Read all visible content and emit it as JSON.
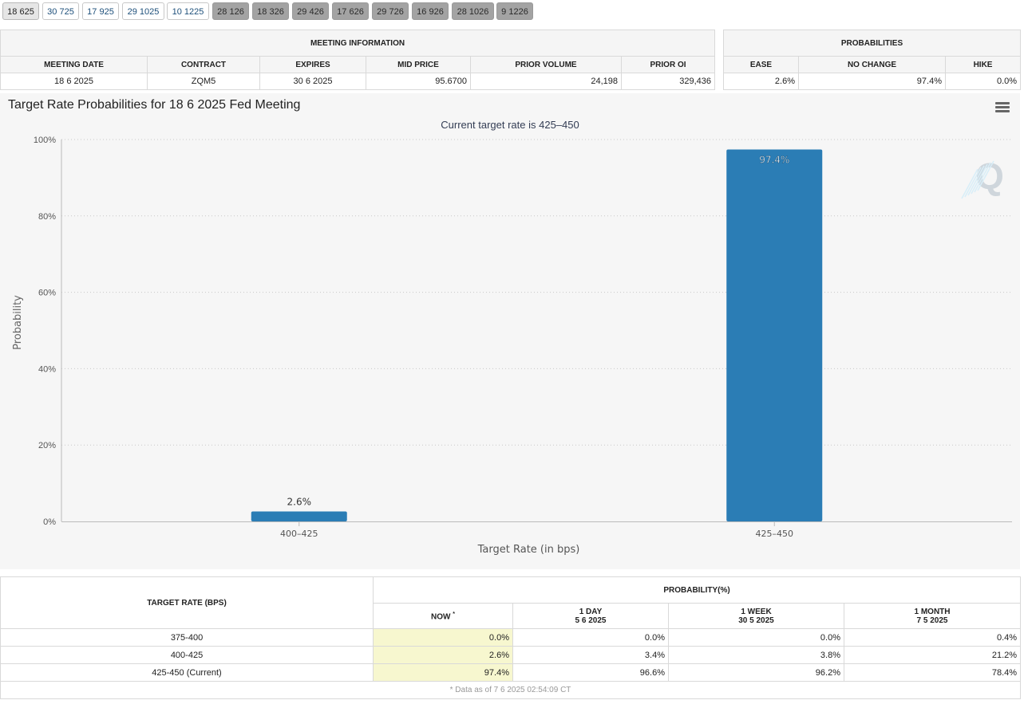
{
  "tabs": [
    {
      "label": "18 625",
      "state": "active"
    },
    {
      "label": "30 725",
      "state": "normal"
    },
    {
      "label": "17 925",
      "state": "normal"
    },
    {
      "label": "29 1025",
      "state": "normal"
    },
    {
      "label": "10 1225",
      "state": "normal"
    },
    {
      "label": "28 126",
      "state": "gray"
    },
    {
      "label": "18 326",
      "state": "gray"
    },
    {
      "label": "29 426",
      "state": "gray"
    },
    {
      "label": "17 626",
      "state": "gray"
    },
    {
      "label": "29 726",
      "state": "gray"
    },
    {
      "label": "16 926",
      "state": "gray"
    },
    {
      "label": "28 1026",
      "state": "gray"
    },
    {
      "label": "9 1226",
      "state": "gray"
    }
  ],
  "meeting_info": {
    "title": "MEETING INFORMATION",
    "headers": [
      "MEETING DATE",
      "CONTRACT",
      "EXPIRES",
      "MID PRICE",
      "PRIOR VOLUME",
      "PRIOR OI"
    ],
    "values": [
      "18 6 2025",
      "ZQM5",
      "30 6 2025",
      "95.6700",
      "24,198",
      "329,436"
    ]
  },
  "probabilities": {
    "title": "PROBABILITIES",
    "headers": [
      "EASE",
      "NO CHANGE",
      "HIKE"
    ],
    "values": [
      "2.6%",
      "97.4%",
      "0.0%"
    ]
  },
  "chart_data": {
    "type": "bar",
    "title": "Target Rate Probabilities for 18 6 2025 Fed Meeting",
    "subtitle": "Current target rate is 425–450",
    "xlabel": "Target Rate (in bps)",
    "ylabel": "Probability",
    "categories": [
      "400–425",
      "425–450"
    ],
    "values": [
      2.6,
      97.4
    ],
    "value_labels": [
      "2.6%",
      "97.4%"
    ],
    "ylim": [
      0,
      100
    ],
    "yticks": [
      0,
      20,
      40,
      60,
      80,
      100
    ],
    "ytick_labels": [
      "0%",
      "20%",
      "40%",
      "60%",
      "80%",
      "100%"
    ],
    "grid": true,
    "bar_color": "#2b7db5",
    "watermark": "Q"
  },
  "rate_table": {
    "target_rate_header": "TARGET RATE (BPS)",
    "probability_header": "PROBABILITY(%)",
    "sub_headers": [
      {
        "line1": "NOW",
        "line2": ""
      },
      {
        "line1": "1 DAY",
        "line2": "5 6 2025"
      },
      {
        "line1": "1 WEEK",
        "line2": "30 5 2025"
      },
      {
        "line1": "1 MONTH",
        "line2": "7 5 2025"
      }
    ],
    "now_marker": "*",
    "rows": [
      {
        "rate": "375-400",
        "now": "0.0%",
        "day": "0.0%",
        "week": "0.0%",
        "month": "0.4%"
      },
      {
        "rate": "400-425",
        "now": "2.6%",
        "day": "3.4%",
        "week": "3.8%",
        "month": "21.2%"
      },
      {
        "rate": "425-450 (Current)",
        "now": "97.4%",
        "day": "96.6%",
        "week": "96.2%",
        "month": "78.4%"
      }
    ],
    "footnote": "* Data as of 7 6 2025 02:54:09 CT"
  }
}
